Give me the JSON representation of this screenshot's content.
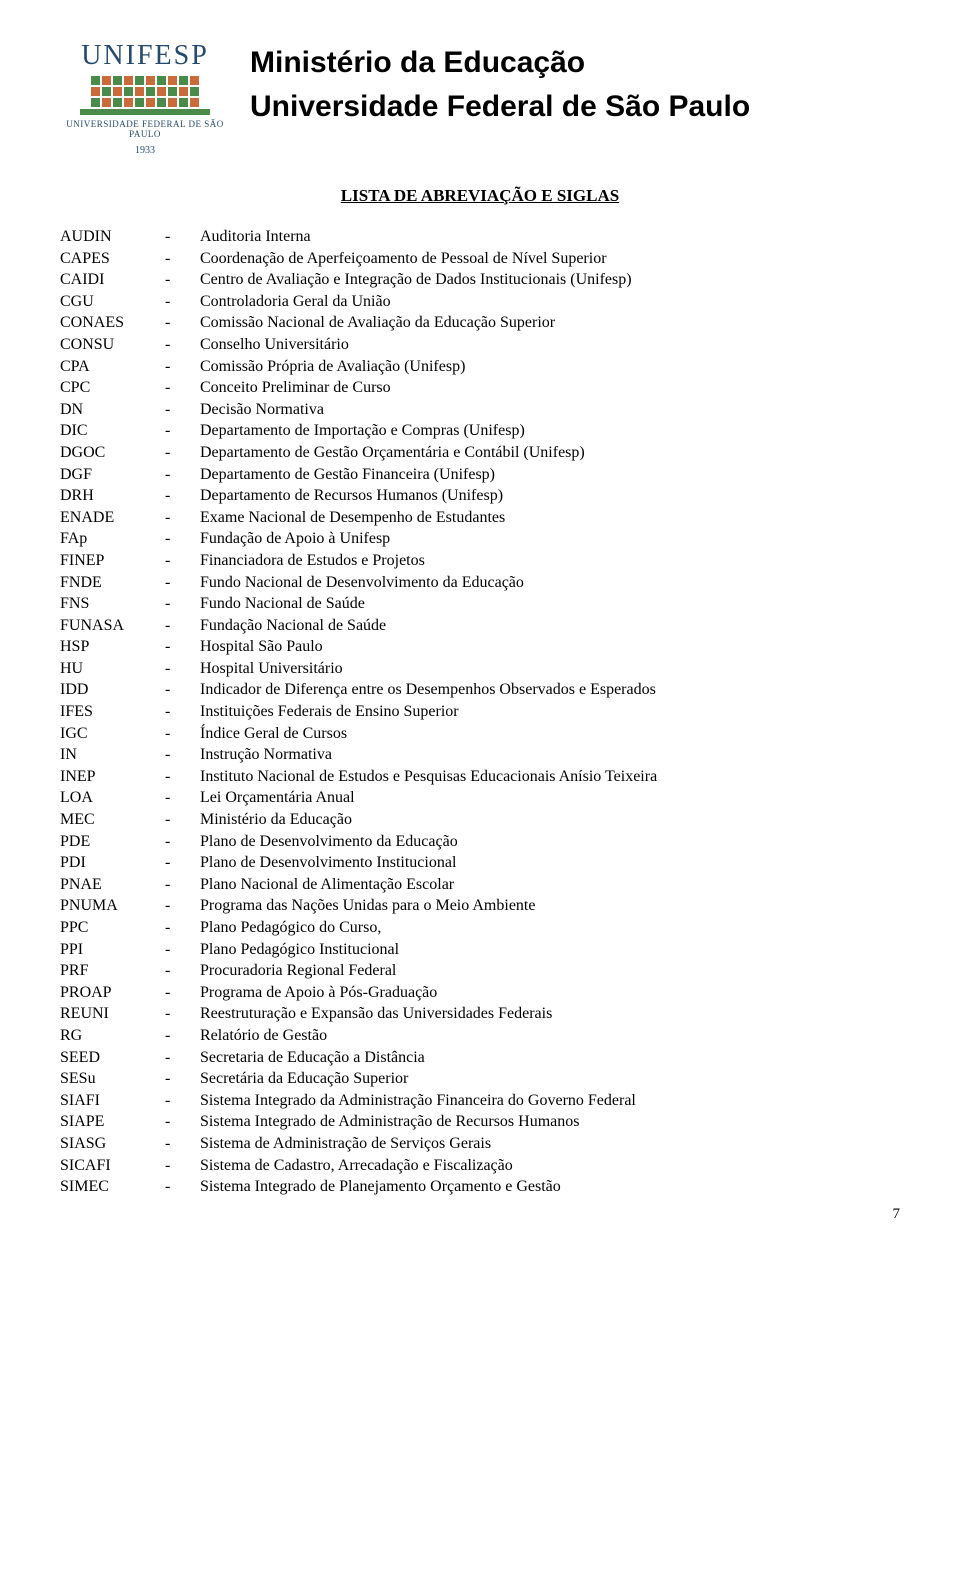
{
  "header": {
    "logo_name": "UNIFESP",
    "logo_subtitle": "UNIVERSIDADE FEDERAL DE SÃO PAULO",
    "logo_year": "1933",
    "line1": "Ministério da Educação",
    "line2": "Universidade Federal de São Paulo"
  },
  "section_title": "LISTA DE ABREVIAÇÃO E SIGLAS",
  "page_number": "7",
  "abbrevs": [
    {
      "code": "AUDIN",
      "dash": "-",
      "desc": "Auditoria Interna"
    },
    {
      "code": "CAPES",
      "dash": "-",
      "desc": "Coordenação de Aperfeiçoamento de Pessoal de Nível Superior"
    },
    {
      "code": "CAIDI",
      "dash": "-",
      "desc": "Centro de Avaliação e Integração de Dados Institucionais (Unifesp)"
    },
    {
      "code": "CGU",
      "dash": "-",
      "desc": "Controladoria Geral da União"
    },
    {
      "code": "CONAES",
      "dash": "-",
      "desc": "Comissão Nacional de Avaliação da Educação Superior"
    },
    {
      "code": "CONSU",
      "dash": "-",
      "desc": "Conselho Universitário"
    },
    {
      "code": "CPA",
      "dash": "-",
      "desc": "Comissão Própria de Avaliação  (Unifesp)"
    },
    {
      "code": "CPC",
      "dash": "-",
      "desc": "Conceito Preliminar de Curso"
    },
    {
      "code": "DN",
      "dash": "-",
      "desc": "Decisão Normativa"
    },
    {
      "code": "DIC",
      "dash": "-",
      "desc": "Departamento de Importação e Compras (Unifesp)"
    },
    {
      "code": "DGOC",
      "dash": "-",
      "desc": "Departamento de Gestão Orçamentária e Contábil (Unifesp)"
    },
    {
      "code": "DGF",
      "dash": "-",
      "desc": "Departamento de Gestão Financeira (Unifesp)"
    },
    {
      "code": "DRH",
      "dash": "-",
      "desc": "Departamento de Recursos Humanos (Unifesp)"
    },
    {
      "code": "ENADE",
      "dash": "-",
      "desc": "Exame Nacional de Desempenho de Estudantes"
    },
    {
      "code": "FAp",
      "dash": "-",
      "desc": "Fundação de Apoio à Unifesp"
    },
    {
      "code": "FINEP",
      "dash": "-",
      "desc": "Financiadora de Estudos e Projetos"
    },
    {
      "code": "FNDE",
      "dash": "-",
      "desc": "Fundo Nacional de Desenvolvimento da Educação"
    },
    {
      "code": "FNS",
      "dash": "-",
      "desc": "Fundo Nacional de Saúde"
    },
    {
      "code": "FUNASA",
      "dash": "-",
      "desc": "Fundação Nacional de Saúde"
    },
    {
      "code": "HSP",
      "dash": "-",
      "desc": "Hospital São Paulo"
    },
    {
      "code": "HU",
      "dash": "-",
      "desc": "Hospital Universitário"
    },
    {
      "code": "IDD",
      "dash": "-",
      "desc": "Indicador de Diferença entre os Desempenhos Observados e Esperados"
    },
    {
      "code": "IFES",
      "dash": "-",
      "desc": "Instituições Federais de Ensino Superior"
    },
    {
      "code": "IGC",
      "dash": "-",
      "desc": "Índice Geral de Cursos"
    },
    {
      "code": "IN",
      "dash": "-",
      "desc": "Instrução Normativa"
    },
    {
      "code": "INEP",
      "dash": "-",
      "desc": "Instituto Nacional de Estudos e Pesquisas Educacionais Anísio Teixeira"
    },
    {
      "code": "LOA",
      "dash": "-",
      "desc": "Lei Orçamentária Anual"
    },
    {
      "code": "MEC",
      "dash": "-",
      "desc": "Ministério da Educação"
    },
    {
      "code": "PDE",
      "dash": "-",
      "desc": "Plano de Desenvolvimento da Educação"
    },
    {
      "code": "PDI",
      "dash": "-",
      "desc": "Plano de Desenvolvimento Institucional"
    },
    {
      "code": "PNAE",
      "dash": "-",
      "desc": "Plano Nacional de Alimentação Escolar"
    },
    {
      "code": "PNUMA",
      "dash": "-",
      "desc": "Programa das Nações Unidas para o Meio Ambiente"
    },
    {
      "code": "PPC",
      "dash": "-",
      "desc": "Plano Pedagógico do Curso,"
    },
    {
      "code": "PPI",
      "dash": "-",
      "desc": "Plano Pedagógico Institucional"
    },
    {
      "code": "PRF",
      "dash": "-",
      "desc": "Procuradoria Regional Federal"
    },
    {
      "code": "PROAP",
      "dash": "-",
      "desc": "Programa de Apoio à Pós-Graduação"
    },
    {
      "code": "REUNI",
      "dash": "-",
      "desc": "Reestruturação e Expansão das Universidades Federais"
    },
    {
      "code": "RG",
      "dash": "-",
      "desc": "Relatório de Gestão"
    },
    {
      "code": "SEED",
      "dash": "-",
      "desc": "Secretaria de Educação a Distância"
    },
    {
      "code": "SESu",
      "dash": "-",
      "desc": "Secretária da Educação Superior"
    },
    {
      "code": "SIAFI",
      "dash": "-",
      "desc": "Sistema Integrado da Administração Financeira do Governo Federal"
    },
    {
      "code": "SIAPE",
      "dash": "-",
      "desc": "Sistema Integrado de Administração de Recursos Humanos"
    },
    {
      "code": "SIASG",
      "dash": "-",
      "desc": "Sistema de Administração de Serviços Gerais"
    },
    {
      "code": "SICAFI",
      "dash": "-",
      "desc": "Sistema de Cadastro, Arrecadação e Fiscalização"
    },
    {
      "code": "SIMEC",
      "dash": "-",
      "desc": "Sistema Integrado de Planejamento Orçamento e Gestão"
    }
  ]
}
